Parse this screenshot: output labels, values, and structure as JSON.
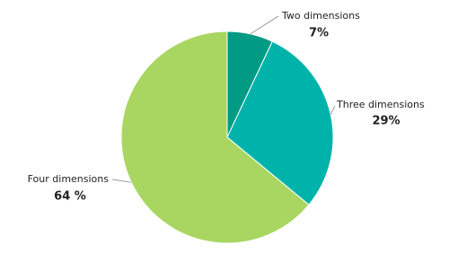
{
  "chart_data": {
    "type": "pie",
    "categories": [
      "Two dimensions",
      "Three dimensions",
      "Four dimensions"
    ],
    "values": [
      7,
      29,
      64
    ],
    "value_labels": [
      "7%",
      "29%",
      "64 %"
    ],
    "colors": [
      "#009a85",
      "#00b3aa",
      "#a8d661"
    ]
  }
}
